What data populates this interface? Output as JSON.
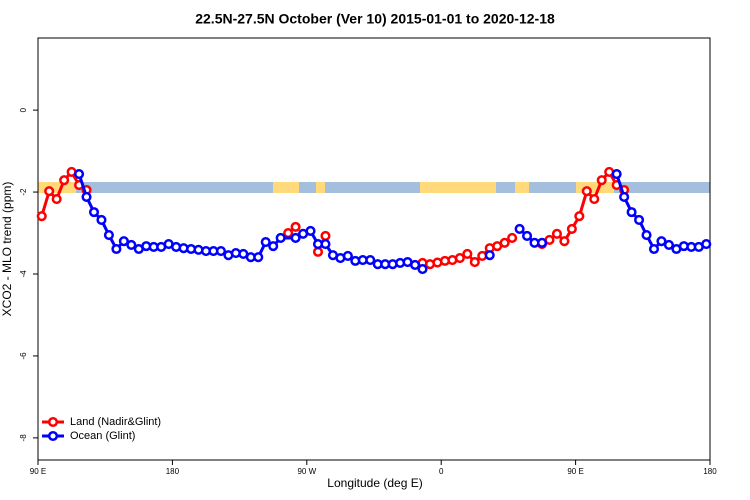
{
  "chart_data": {
    "type": "line",
    "title": "22.5N-27.5N October (Ver 10)   2015-01-01 to 2020-12-18",
    "x_label": "Longitude (deg E)",
    "y_label": "XCO2 - MLO trend (ppm)",
    "xlim": [
      90,
      540
    ],
    "ylim": [
      1.76,
      -8.54
    ],
    "xticks": [
      {
        "value": 90,
        "label": "90 E"
      },
      180,
      {
        "value": 270,
        "label": "90 W"
      },
      {
        "value": 360,
        "label": "0"
      },
      {
        "value": 450,
        "label": "90 E"
      },
      {
        "value": 540,
        "label": "180"
      }
    ],
    "yticks": [
      0,
      -2,
      -4,
      -6,
      -8
    ],
    "legend": "bottom-left",
    "series": [
      {
        "name": "Land (Nadir&Glint)",
        "color": "#ff0000",
        "x": [
          92.5,
          97.5,
          102.5,
          107.5,
          112.5,
          117.5,
          122.5,
          127.5,
          257.5,
          262.5,
          267.5,
          277.5,
          282.5,
          287.5,
          347.5,
          352.5,
          357.5,
          362.5,
          367.5,
          372.5,
          377.5,
          382.5,
          387.5,
          392.5,
          397.5,
          402.5,
          407.5,
          412.5,
          427.5,
          432.5,
          437.5,
          442.5,
          447.5,
          452.5,
          457.5,
          462.5,
          467.5,
          472.5,
          477.5,
          482.5
        ],
        "values": [
          -2.59,
          -1.98,
          -2.17,
          -1.71,
          -1.51,
          -1.83,
          -1.95,
          null,
          -3.0,
          -2.85,
          null,
          -3.46,
          -3.07,
          null,
          -3.73,
          -3.76,
          -3.72,
          -3.68,
          -3.66,
          -3.61,
          -3.51,
          -3.71,
          -3.56,
          -3.37,
          -3.32,
          -3.24,
          -3.12,
          null,
          -3.27,
          -3.17,
          -3.02,
          -3.2,
          -2.9,
          -2.59,
          -1.98,
          -2.17,
          -1.71,
          -1.51,
          -1.83,
          -1.95
        ]
      },
      {
        "name": "Ocean (Glint)",
        "color": "#0000ff",
        "x": [
          117.5,
          122.5,
          127.5,
          132.5,
          137.5,
          142.5,
          147.5,
          152.5,
          157.5,
          162.5,
          167.5,
          172.5,
          177.5,
          182.5,
          187.5,
          192.5,
          197.5,
          202.5,
          207.5,
          212.5,
          217.5,
          222.5,
          227.5,
          232.5,
          237.5,
          242.5,
          247.5,
          252.5,
          262.5,
          267.5,
          272.5,
          277.5,
          282.5,
          287.5,
          292.5,
          297.5,
          302.5,
          307.5,
          312.5,
          317.5,
          322.5,
          327.5,
          332.5,
          337.5,
          342.5,
          347.5,
          352.5,
          392.5,
          397.5,
          412.5,
          417.5,
          422.5,
          427.5,
          432.5,
          477.5,
          482.5,
          487.5,
          492.5,
          497.5,
          502.5,
          507.5,
          512.5,
          517.5,
          522.5,
          527.5,
          532.5,
          537.5
        ],
        "values": [
          -1.56,
          -2.12,
          -2.49,
          -2.68,
          -3.05,
          -3.39,
          -3.2,
          -3.29,
          -3.39,
          -3.32,
          -3.34,
          -3.34,
          -3.27,
          -3.34,
          -3.37,
          -3.39,
          -3.41,
          -3.44,
          -3.44,
          -3.44,
          -3.54,
          -3.49,
          -3.51,
          -3.59,
          -3.59,
          -3.22,
          -3.32,
          -3.12,
          -3.12,
          -3.02,
          -2.95,
          -3.27,
          -3.27,
          -3.54,
          -3.61,
          -3.56,
          -3.68,
          -3.66,
          -3.66,
          -3.76,
          -3.76,
          -3.76,
          -3.73,
          -3.71,
          -3.78,
          -3.88,
          null,
          -3.54,
          null,
          -2.9,
          -3.07,
          -3.24,
          -3.24,
          null,
          -1.56,
          -2.12,
          -2.49,
          -2.68,
          -3.05,
          -3.39,
          -3.2,
          -3.29,
          -3.39,
          -3.32,
          -3.34,
          -3.34,
          -3.27
        ]
      }
    ]
  }
}
